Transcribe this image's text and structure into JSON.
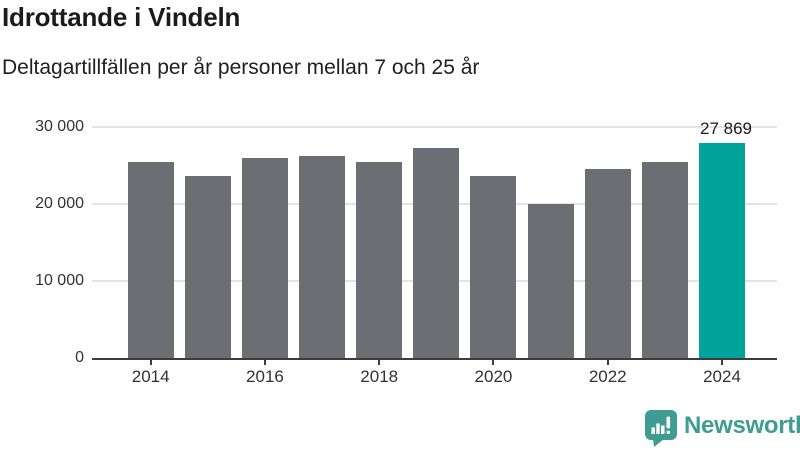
{
  "header": {
    "title": "Idrottande i Vindeln",
    "subtitle": "Deltagartillfällen per år personer mellan 7 och 25 år"
  },
  "chart_data": {
    "type": "bar",
    "title": "Idrottande i Vindeln",
    "subtitle": "Deltagartillfällen per år personer mellan 7 och 25 år",
    "categories": [
      "2014",
      "2015",
      "2016",
      "2017",
      "2018",
      "2019",
      "2020",
      "2021",
      "2022",
      "2023",
      "2024"
    ],
    "values": [
      25400,
      23700,
      26000,
      26200,
      25500,
      27300,
      23700,
      20000,
      24600,
      25400,
      27869
    ],
    "highlight": {
      "category": "2024",
      "value": 27869,
      "label": "27 869"
    },
    "ylim": [
      0,
      30000
    ],
    "yticks": [
      {
        "value": 0,
        "label": "0"
      },
      {
        "value": 10000,
        "label": "10 000"
      },
      {
        "value": 20000,
        "label": "20 000"
      },
      {
        "value": 30000,
        "label": "30 000"
      }
    ],
    "xtick_labels": [
      "2014",
      "2016",
      "2018",
      "2020",
      "2022",
      "2024"
    ],
    "grid": true,
    "legend": false,
    "colors": {
      "bar": "#6d6d74",
      "highlight": "#00a49a",
      "grid": "#e3e3e3",
      "axis": "#3b3b40",
      "tick_label": "#333333",
      "value_label": "#1b1b1b"
    }
  },
  "footer": {
    "brand": "Newsworthy",
    "brand_color": "#3f9c92"
  }
}
